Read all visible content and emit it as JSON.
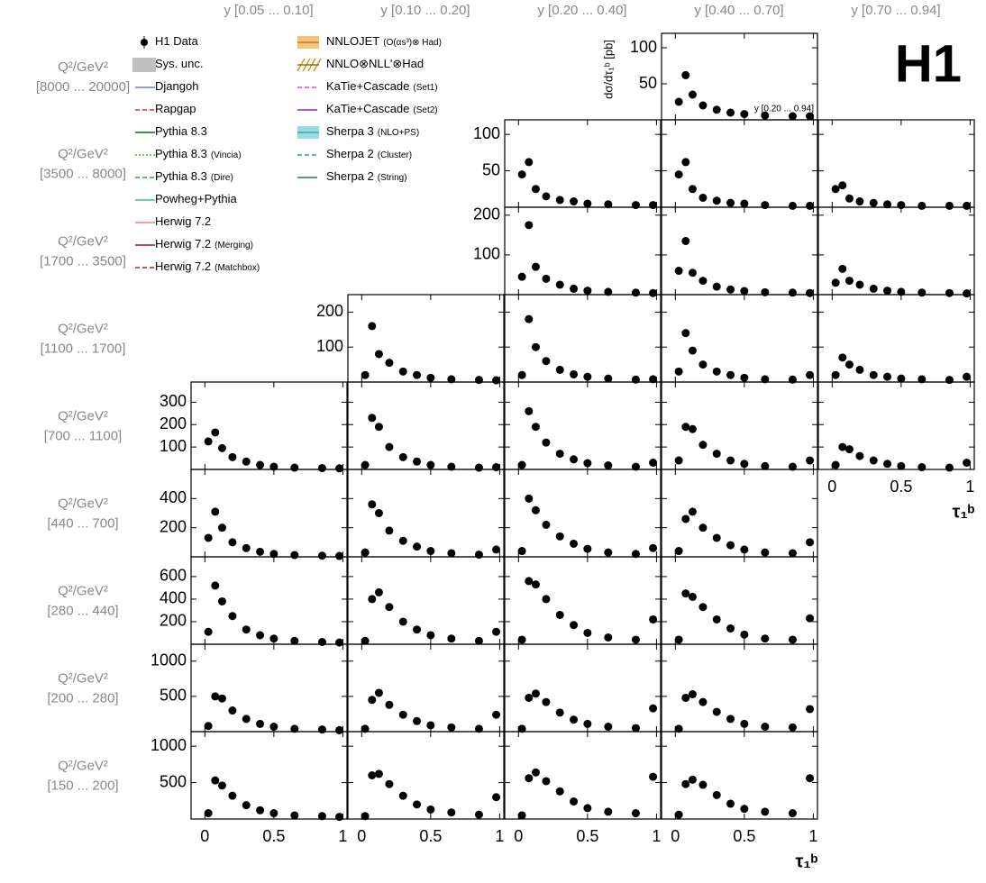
{
  "chart_data": {
    "type": "scatter",
    "logo": "H1",
    "y_label": "dσ/dτ₁ᵇ [pb]",
    "x_label": "τ₁ᵇ",
    "column_labels": [
      "y  [0.05 ... 0.10]",
      "y  [0.10 ... 0.20]",
      "y  [0.20 ... 0.40]",
      "y  [0.40 ... 0.70]",
      "y  [0.70 ... 0.94]"
    ],
    "x": [
      0.025,
      0.075,
      0.125,
      0.2,
      0.3,
      0.4,
      0.5,
      0.65,
      0.85,
      0.975
    ],
    "xlim": [
      -0.1,
      1.03
    ],
    "xticks": [
      0,
      0.5,
      1
    ],
    "rows": [
      {
        "q2": "Q²/GeV²",
        "range": "[8000 ... 20000]",
        "ylim": [
          0,
          120
        ],
        "yticks": [
          50,
          100
        ],
        "panels": [
          null,
          null,
          null,
          {
            "note": "y [0.20 ... 0.94]",
            "values": [
              25,
              62,
              35,
              20,
              14,
              10,
              8,
              6,
              5,
              5
            ]
          },
          null
        ]
      },
      {
        "q2": "Q²/GeV²",
        "range": "[3500 ... 8000]",
        "ylim": [
          0,
          120
        ],
        "yticks": [
          50,
          100
        ],
        "panels": [
          null,
          null,
          {
            "values": [
              45,
              62,
              25,
              15,
              10,
              8,
              5,
              4,
              3,
              3
            ]
          },
          {
            "values": [
              45,
              62,
              25,
              13,
              9,
              6,
              5,
              3,
              2,
              2
            ]
          },
          {
            "values": [
              25,
              30,
              12,
              8,
              6,
              4,
              3,
              2,
              2,
              2
            ]
          }
        ]
      },
      {
        "q2": "Q²/GeV²",
        "range": "[1700 ... 3500]",
        "ylim": [
          0,
          220
        ],
        "yticks": [
          100,
          200
        ],
        "panels": [
          null,
          null,
          {
            "values": [
              45,
              175,
              70,
              40,
              25,
              15,
              10,
              7,
              5,
              4
            ]
          },
          {
            "values": [
              60,
              135,
              55,
              35,
              20,
              13,
              9,
              6,
              5,
              4
            ]
          },
          {
            "values": [
              30,
              65,
              35,
              25,
              15,
              10,
              7,
              5,
              4,
              3
            ]
          }
        ]
      },
      {
        "q2": "Q²/GeV²",
        "range": "[1100 ... 1700]",
        "ylim": [
          0,
          250
        ],
        "yticks": [
          100,
          200
        ],
        "panels": [
          null,
          {
            "values": [
              20,
              160,
              80,
              55,
              30,
              20,
              12,
              8,
              6,
              5
            ]
          },
          {
            "values": [
              20,
              180,
              100,
              60,
              35,
              22,
              15,
              10,
              7,
              8
            ]
          },
          {
            "values": [
              30,
              140,
              90,
              50,
              30,
              20,
              12,
              8,
              7,
              20
            ]
          },
          {
            "values": [
              20,
              70,
              50,
              35,
              20,
              15,
              10,
              8,
              6,
              15
            ]
          }
        ]
      },
      {
        "q2": "Q²/GeV²",
        "range": "[700 ... 1100]",
        "ylim": [
          0,
          390
        ],
        "yticks": [
          100,
          200,
          300
        ],
        "panels": [
          {
            "values": [
              125,
              165,
              95,
              55,
              35,
              20,
              12,
              8,
              6,
              5
            ]
          },
          {
            "values": [
              20,
              230,
              190,
              100,
              55,
              35,
              20,
              12,
              8,
              10
            ]
          },
          {
            "values": [
              20,
              260,
              190,
              120,
              70,
              45,
              28,
              18,
              12,
              30
            ]
          },
          {
            "values": [
              40,
              190,
              180,
              110,
              70,
              40,
              25,
              15,
              12,
              40
            ]
          },
          {
            "values": [
              20,
              100,
              90,
              60,
              40,
              25,
              15,
              10,
              8,
              30
            ]
          }
        ]
      },
      {
        "q2": "Q²/GeV²",
        "range": "[440 ... 700]",
        "ylim": [
          0,
          600
        ],
        "yticks": [
          200,
          400
        ],
        "panels": [
          {
            "values": [
              130,
              310,
              200,
              100,
              60,
              35,
              20,
              12,
              8,
              6
            ]
          },
          {
            "values": [
              30,
              360,
              300,
              180,
              110,
              70,
              40,
              25,
              15,
              50
            ]
          },
          {
            "values": [
              40,
              400,
              320,
              220,
              140,
              90,
              55,
              30,
              20,
              60
            ]
          },
          {
            "values": [
              40,
              260,
              310,
              200,
              130,
              80,
              50,
              30,
              25,
              100
            ]
          },
          null
        ]
      },
      {
        "q2": "Q²/GeV²",
        "range": "[280 ... 440]",
        "ylim": [
          0,
          775
        ],
        "yticks": [
          200,
          400,
          600
        ],
        "panels": [
          {
            "values": [
              110,
              520,
              380,
              250,
              130,
              80,
              50,
              30,
              20,
              15
            ]
          },
          {
            "values": [
              30,
              400,
              460,
              330,
              200,
              130,
              80,
              50,
              30,
              110
            ]
          },
          {
            "values": [
              40,
              560,
              530,
              400,
              260,
              170,
              100,
              60,
              40,
              220
            ]
          },
          {
            "values": [
              40,
              450,
              420,
              330,
              220,
              140,
              85,
              50,
              40,
              230
            ]
          },
          null
        ]
      },
      {
        "q2": "Q²/GeV²",
        "range": "[200 ... 280]",
        "ylim": [
          0,
          1240
        ],
        "yticks": [
          500,
          1000
        ],
        "panels": [
          {
            "values": [
              80,
              500,
              470,
              300,
              180,
              110,
              70,
              40,
              30,
              20
            ]
          },
          {
            "values": [
              40,
              450,
              550,
              380,
              240,
              150,
              90,
              60,
              40,
              240
            ]
          },
          {
            "values": [
              40,
              480,
              540,
              420,
              270,
              170,
              110,
              70,
              50,
              330
            ]
          },
          {
            "values": [
              40,
              480,
              530,
              420,
              280,
              180,
              110,
              70,
              60,
              320
            ]
          },
          null
        ]
      },
      {
        "q2": "Q²/GeV²",
        "range": "[150 ... 200]",
        "ylim": [
          0,
          1200
        ],
        "yticks": [
          500,
          1000
        ],
        "panels": [
          {
            "values": [
              80,
              530,
              460,
              320,
              190,
              120,
              80,
              50,
              40,
              30
            ]
          },
          {
            "values": [
              40,
              600,
              620,
              480,
              320,
              200,
              130,
              90,
              60,
              300
            ]
          },
          {
            "values": [
              50,
              560,
              640,
              520,
              380,
              240,
              150,
              100,
              80,
              580
            ]
          },
          {
            "values": [
              60,
              480,
              540,
              470,
              330,
              210,
              140,
              100,
              80,
              560
            ]
          },
          null
        ]
      }
    ],
    "legend": [
      {
        "name": "H1 Data",
        "style": "marker",
        "color": "#000000"
      },
      {
        "name": "Sys. unc.",
        "style": "box",
        "color": "#c0c0c0"
      },
      {
        "name": "Djangoh",
        "style": "solid",
        "color": "#6a7bd8"
      },
      {
        "name": "Rapgap",
        "style": "dashed",
        "color": "#e03030"
      },
      {
        "name": "Pythia 8.3",
        "style": "solid",
        "color": "#0a6a0a"
      },
      {
        "name": "Pythia 8.3",
        "note": "(Vincia)",
        "style": "dotted",
        "color": "#3cb43c"
      },
      {
        "name": "Pythia 8.3",
        "note": "(Dire)",
        "style": "dashed",
        "color": "#2ca02c"
      },
      {
        "name": "Powheg+Pythia",
        "style": "solid",
        "color": "#3cbf9c"
      },
      {
        "name": "Herwig 7.2",
        "style": "solid",
        "color": "#f08080"
      },
      {
        "name": "Herwig 7.2",
        "note": "(Merging)",
        "style": "solid",
        "color": "#a01010"
      },
      {
        "name": "Herwig 7.2",
        "note": "(Matchbox)",
        "style": "dashed",
        "color": "#c02020"
      },
      {
        "name": "NNLOJET",
        "note": "(O(αs³)⊗ Had)",
        "style": "band",
        "color": "#f4b860"
      },
      {
        "name": "NNLO⊗NLL'⊗Had",
        "style": "hatch",
        "color": "#c8a020"
      },
      {
        "name": "KaTie+Cascade",
        "note": "(Set1)",
        "style": "dashed",
        "color": "#e040e0"
      },
      {
        "name": "KaTie+Cascade",
        "note": "(Set2)",
        "style": "solid",
        "color": "#7b2be0"
      },
      {
        "name": "Sherpa 3",
        "note": "(NLO+PS)",
        "style": "band",
        "color": "#80d8e0"
      },
      {
        "name": "Sherpa 2",
        "note": "(Cluster)",
        "style": "dashed",
        "color": "#30a0a0"
      },
      {
        "name": "Sherpa 2",
        "note": "(String)",
        "style": "solid",
        "color": "#207070"
      }
    ]
  }
}
